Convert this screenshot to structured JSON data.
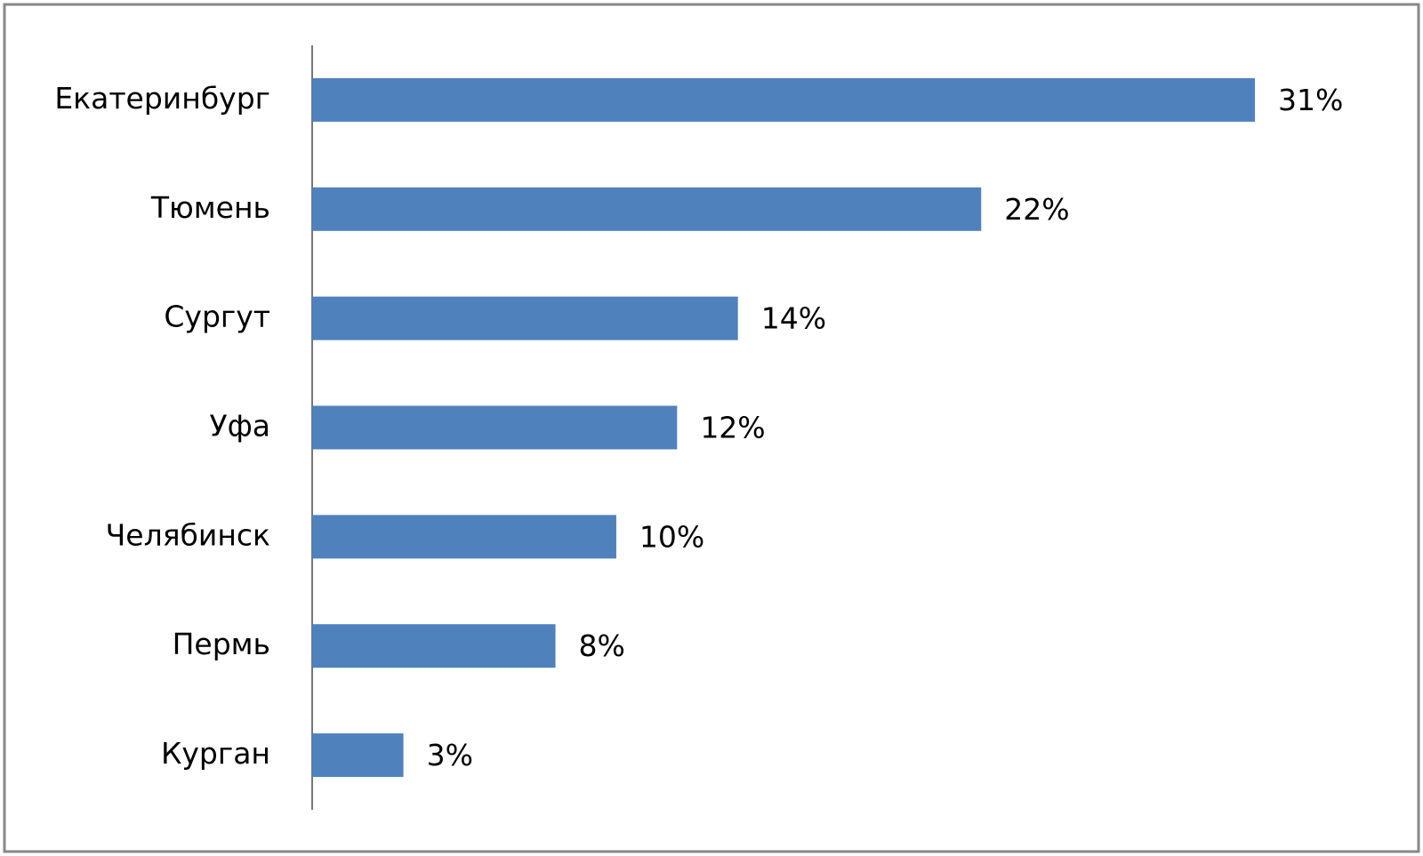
{
  "chart_data": {
    "type": "bar",
    "orientation": "horizontal",
    "categories": [
      "Екатеринбург",
      "Тюмень",
      "Сургут",
      "Уфа",
      "Челябинск",
      "Пермь",
      "Курган"
    ],
    "values": [
      31,
      22,
      14,
      12,
      10,
      8,
      3
    ],
    "value_labels": [
      "31%",
      "22%",
      "14%",
      "12%",
      "10%",
      "8%",
      "3%"
    ],
    "color": "#4f81bd"
  }
}
